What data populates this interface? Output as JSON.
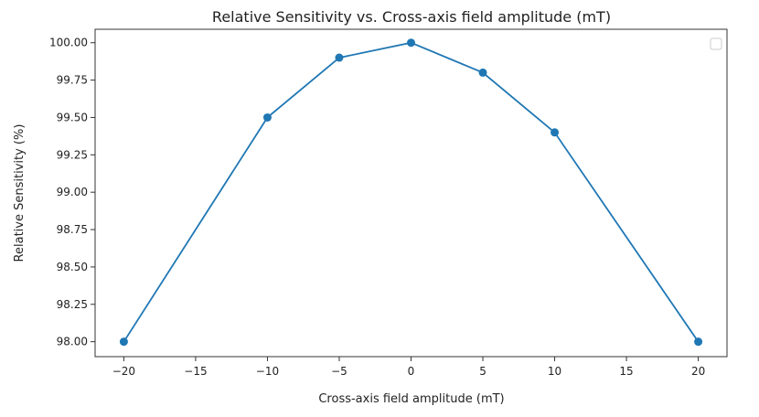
{
  "chart_data": {
    "type": "line",
    "title": "Relative Sensitivity vs. Cross-axis field amplitude (mT)",
    "xlabel": "Cross-axis field amplitude (mT)",
    "ylabel": "Relative Sensitivity (%)",
    "xlim": [
      -22,
      22
    ],
    "ylim": [
      97.9,
      100.09
    ],
    "xticks": [
      -20,
      -15,
      -10,
      -5,
      0,
      5,
      10,
      15,
      20
    ],
    "xtick_labels": [
      "−20",
      "−15",
      "−10",
      "−5",
      "0",
      "5",
      "10",
      "15",
      "20"
    ],
    "yticks": [
      98.0,
      98.25,
      98.5,
      98.75,
      99.0,
      99.25,
      99.5,
      99.75,
      100.0
    ],
    "ytick_labels": [
      "98.00",
      "98.25",
      "98.50",
      "98.75",
      "99.00",
      "99.25",
      "99.50",
      "99.75",
      "100.00"
    ],
    "grid": false,
    "legend": "top-right (empty)",
    "series": [
      {
        "name": "Relative Sensitivity",
        "color": "#1f77b4",
        "x": [
          -20,
          -10,
          -5,
          0,
          5,
          10,
          20
        ],
        "y": [
          98.0,
          99.5,
          99.9,
          100.0,
          99.8,
          99.4,
          98.0
        ]
      }
    ]
  }
}
